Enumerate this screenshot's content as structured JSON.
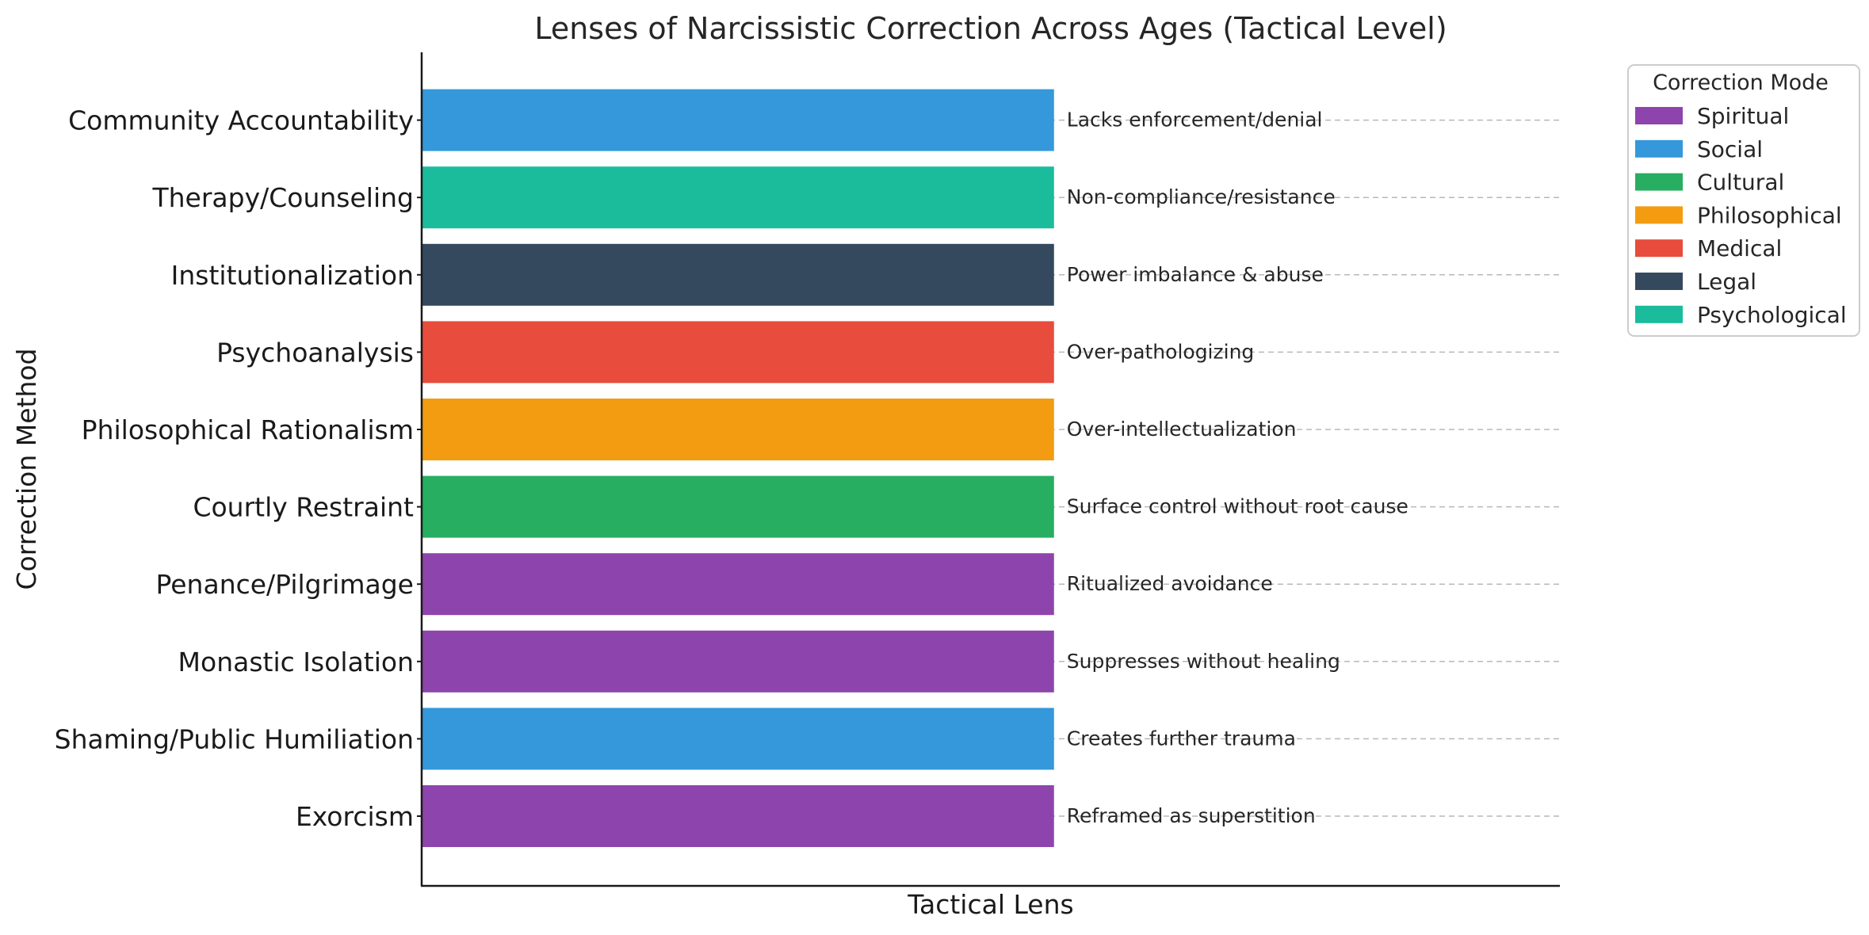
{
  "chart_data": {
    "type": "bar",
    "orientation": "horizontal",
    "title": "Lenses of Narcissistic Correction Across Ages (Tactical Level)",
    "xlabel": "Tactical Lens",
    "ylabel": "Correction Method",
    "xlim": [
      0,
      1.8
    ],
    "grid": "horizontal dashed lines",
    "legend_placement": "outside-top-right",
    "legend_title": "Correction Mode",
    "legend": [
      {
        "mode": "Spiritual",
        "color": "#8e44ad"
      },
      {
        "mode": "Social",
        "color": "#3498db"
      },
      {
        "mode": "Cultural",
        "color": "#27ae60"
      },
      {
        "mode": "Philosophical",
        "color": "#f39c12"
      },
      {
        "mode": "Medical",
        "color": "#e74c3c"
      },
      {
        "mode": "Legal",
        "color": "#34495e"
      },
      {
        "mode": "Psychological",
        "color": "#1abc9c"
      }
    ],
    "categories": [
      "Exorcism",
      "Shaming/Public Humiliation",
      "Monastic Isolation",
      "Penance/Pilgrimage",
      "Courtly Restraint",
      "Philosophical Rationalism",
      "Psychoanalysis",
      "Institutionalization",
      "Therapy/Counseling",
      "Community Accountability"
    ],
    "values": [
      1,
      1,
      1,
      1,
      1,
      1,
      1,
      1,
      1,
      1
    ],
    "modes": [
      "Spiritual",
      "Social",
      "Spiritual",
      "Spiritual",
      "Cultural",
      "Philosophical",
      "Medical",
      "Legal",
      "Psychological",
      "Social"
    ],
    "annotations": [
      "Reframed as superstition",
      "Creates further trauma",
      "Suppresses without healing",
      "Ritualized avoidance",
      "Surface control without root cause",
      "Over-intellectualization",
      "Over-pathologizing",
      "Power imbalance & abuse",
      "Non-compliance/resistance",
      "Lacks enforcement/denial"
    ]
  }
}
